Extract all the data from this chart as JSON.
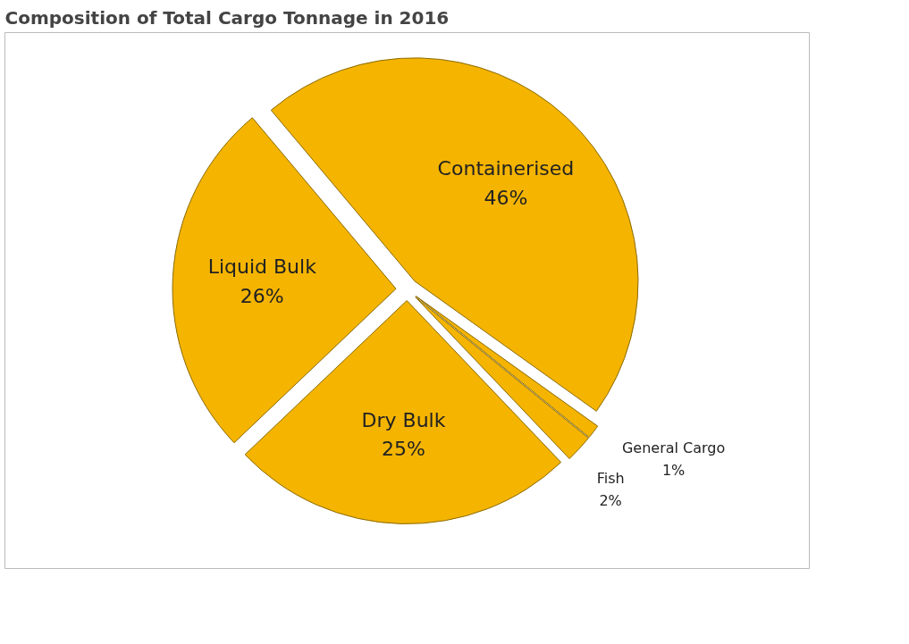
{
  "chart_data": {
    "type": "pie",
    "title": "Composition of Total Cargo Tonnage in 2016",
    "categories": [
      "Containerised",
      "General Cargo",
      "Fish",
      "Dry Bulk",
      "Liquid Bulk"
    ],
    "values": [
      46,
      1,
      2,
      25,
      26
    ],
    "colors": [
      "#f4b400",
      "#f4b400",
      "#f4b400",
      "#f4b400",
      "#f4b400"
    ],
    "value_labels": [
      "46%",
      "1%",
      "2%",
      "25%",
      "26%"
    ]
  }
}
